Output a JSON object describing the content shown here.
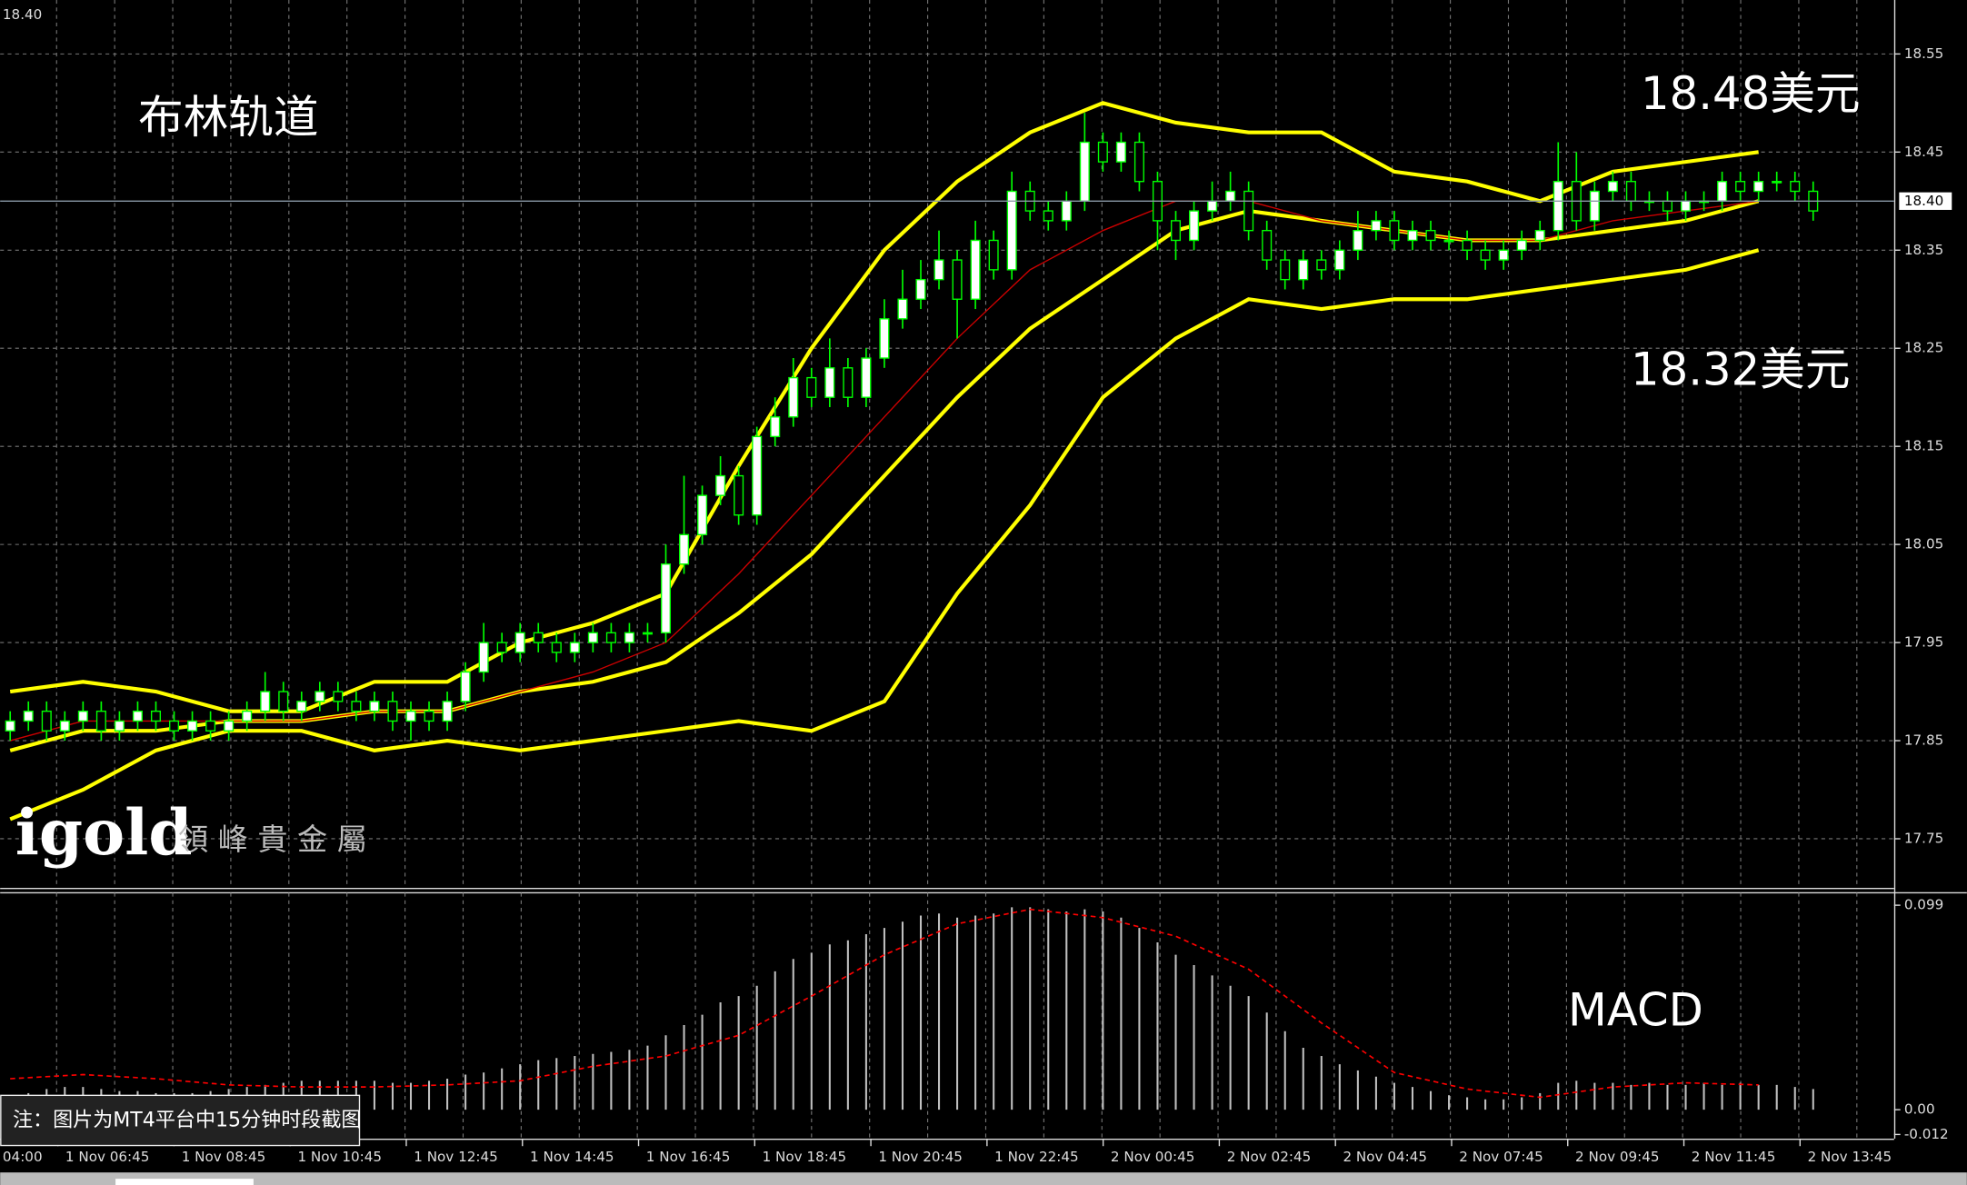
{
  "chart_data": [
    {
      "type": "candlestick",
      "corner_label": "18.40",
      "annotations": [
        "布林轨道",
        "18.48美元",
        "18.32美元"
      ],
      "up_color": "#00ff00",
      "open": [
        17.86,
        17.87,
        17.88,
        17.86,
        17.87,
        17.88,
        17.86,
        17.87,
        17.88,
        17.87,
        17.86,
        17.87,
        17.86,
        17.87,
        17.88,
        17.9,
        17.88,
        17.89,
        17.9,
        17.89,
        17.88,
        17.89,
        17.87,
        17.88,
        17.87,
        17.89,
        17.92,
        17.95,
        17.94,
        17.96,
        17.95,
        17.94,
        17.95,
        17.96,
        17.95,
        17.96,
        17.96,
        18.03,
        18.06,
        18.1,
        18.12,
        18.08,
        18.16,
        18.18,
        18.22,
        18.2,
        18.23,
        18.2,
        18.24,
        18.28,
        18.3,
        18.32,
        18.34,
        18.3,
        18.36,
        18.33,
        18.41,
        18.39,
        18.38,
        18.4,
        18.46,
        18.44,
        18.46,
        18.42,
        18.38,
        18.36,
        18.39,
        18.4,
        18.41,
        18.37,
        18.34,
        18.32,
        18.34,
        18.33,
        18.35,
        18.37,
        18.38,
        18.36,
        18.37,
        18.36,
        18.36,
        18.35,
        18.34,
        18.35,
        18.36,
        18.37,
        18.42,
        18.38,
        18.41,
        18.42,
        18.4,
        18.4,
        18.39,
        18.4,
        18.4,
        18.42,
        18.41,
        18.42,
        18.42,
        18.41
      ],
      "high": [
        17.88,
        17.89,
        17.89,
        17.88,
        17.89,
        17.89,
        17.88,
        17.89,
        17.89,
        17.88,
        17.88,
        17.88,
        17.88,
        17.89,
        17.92,
        17.91,
        17.9,
        17.91,
        17.91,
        17.9,
        17.9,
        17.9,
        17.89,
        17.89,
        17.9,
        17.93,
        17.97,
        17.96,
        17.97,
        17.97,
        17.96,
        17.96,
        17.97,
        17.97,
        17.97,
        17.97,
        18.05,
        18.12,
        18.11,
        18.14,
        18.13,
        18.17,
        18.2,
        18.24,
        18.23,
        18.26,
        18.24,
        18.25,
        18.3,
        18.33,
        18.34,
        18.37,
        18.35,
        18.38,
        18.37,
        18.43,
        18.42,
        18.4,
        18.41,
        18.49,
        18.47,
        18.47,
        18.47,
        18.43,
        18.39,
        18.4,
        18.42,
        18.43,
        18.42,
        18.38,
        18.35,
        18.35,
        18.35,
        18.36,
        18.39,
        18.39,
        18.39,
        18.38,
        18.38,
        18.37,
        18.37,
        18.36,
        18.36,
        18.37,
        18.38,
        18.46,
        18.45,
        18.42,
        18.43,
        18.43,
        18.41,
        18.41,
        18.41,
        18.41,
        18.43,
        18.43,
        18.43,
        18.43,
        18.43,
        18.42
      ],
      "low": [
        17.85,
        17.86,
        17.85,
        17.85,
        17.86,
        17.85,
        17.85,
        17.86,
        17.86,
        17.85,
        17.85,
        17.85,
        17.85,
        17.86,
        17.87,
        17.87,
        17.87,
        17.88,
        17.88,
        17.87,
        17.87,
        17.86,
        17.85,
        17.86,
        17.86,
        17.88,
        17.91,
        17.93,
        17.93,
        17.94,
        17.93,
        17.93,
        17.94,
        17.94,
        17.94,
        17.95,
        17.95,
        18.02,
        18.05,
        18.09,
        18.07,
        18.07,
        18.15,
        18.17,
        18.19,
        18.19,
        18.19,
        18.19,
        18.23,
        18.27,
        18.29,
        18.31,
        18.26,
        18.29,
        18.32,
        18.32,
        18.38,
        18.37,
        18.37,
        18.39,
        18.43,
        18.43,
        18.41,
        18.35,
        18.34,
        18.35,
        18.38,
        18.39,
        18.36,
        18.33,
        18.31,
        18.31,
        18.32,
        18.32,
        18.34,
        18.36,
        18.35,
        18.35,
        18.35,
        18.35,
        18.34,
        18.33,
        18.33,
        18.34,
        18.35,
        18.36,
        18.37,
        18.37,
        18.4,
        18.39,
        18.39,
        18.38,
        18.38,
        18.39,
        18.39,
        18.4,
        18.4,
        18.41,
        18.4,
        18.38
      ],
      "close": [
        17.87,
        17.88,
        17.86,
        17.87,
        17.88,
        17.86,
        17.87,
        17.88,
        17.87,
        17.86,
        17.87,
        17.86,
        17.87,
        17.88,
        17.9,
        17.88,
        17.89,
        17.9,
        17.89,
        17.88,
        17.89,
        17.87,
        17.88,
        17.87,
        17.89,
        17.92,
        17.95,
        17.94,
        17.96,
        17.95,
        17.94,
        17.95,
        17.96,
        17.95,
        17.96,
        17.96,
        18.03,
        18.06,
        18.1,
        18.12,
        18.08,
        18.16,
        18.18,
        18.22,
        18.2,
        18.23,
        18.2,
        18.24,
        18.28,
        18.3,
        18.32,
        18.34,
        18.3,
        18.36,
        18.33,
        18.41,
        18.39,
        18.38,
        18.4,
        18.46,
        18.44,
        18.46,
        18.42,
        18.38,
        18.36,
        18.39,
        18.4,
        18.41,
        18.37,
        18.34,
        18.32,
        18.34,
        18.33,
        18.35,
        18.37,
        18.38,
        18.36,
        18.37,
        18.36,
        18.36,
        18.35,
        18.34,
        18.35,
        18.36,
        18.37,
        18.42,
        18.38,
        18.41,
        18.42,
        18.4,
        18.4,
        18.39,
        18.4,
        18.4,
        18.42,
        18.41,
        18.42,
        18.42,
        18.41,
        18.39
      ],
      "bands": [
        {
          "color": "#ffff00",
          "values": [
            17.9,
            17.91,
            17.9,
            17.88,
            17.88,
            17.91,
            17.91,
            17.95,
            17.97,
            18.0,
            18.13,
            18.25,
            18.35,
            18.42,
            18.47,
            18.5,
            18.48,
            18.47,
            18.47,
            18.43,
            18.42,
            18.4,
            18.43,
            18.44,
            18.45
          ]
        },
        {
          "color": "#ffff00",
          "values": [
            17.84,
            17.86,
            17.86,
            17.87,
            17.87,
            17.88,
            17.88,
            17.9,
            17.91,
            17.93,
            17.98,
            18.04,
            18.12,
            18.2,
            18.27,
            18.32,
            18.37,
            18.39,
            18.38,
            18.37,
            18.36,
            18.36,
            18.37,
            18.38,
            18.4
          ]
        },
        {
          "color": "#ffff00",
          "values": [
            17.77,
            17.8,
            17.84,
            17.86,
            17.86,
            17.84,
            17.85,
            17.84,
            17.85,
            17.86,
            17.87,
            17.86,
            17.89,
            18.0,
            18.09,
            18.2,
            18.26,
            18.3,
            18.29,
            18.3,
            18.3,
            18.31,
            18.32,
            18.33,
            18.35
          ]
        },
        {
          "color": "#cc0000",
          "values": [
            17.85,
            17.87,
            17.87,
            17.87,
            17.87,
            17.88,
            17.88,
            17.9,
            17.92,
            17.95,
            18.02,
            18.1,
            18.18,
            18.26,
            18.33,
            18.37,
            18.4,
            18.4,
            18.38,
            18.37,
            18.36,
            18.36,
            18.38,
            18.39,
            18.4
          ]
        }
      ],
      "last_price": {
        "value": 18.4,
        "label": "18.40"
      },
      "ylim": [
        17.7,
        18.605
      ],
      "yticks": [
        17.75,
        17.85,
        17.95,
        18.05,
        18.15,
        18.25,
        18.35,
        18.45,
        18.55
      ],
      "grid": true,
      "x_labels": [
        "04:00",
        "1 Nov 06:45",
        "1 Nov 08:45",
        "1 Nov 10:45",
        "1 Nov 12:45",
        "1 Nov 14:45",
        "1 Nov 16:45",
        "1 Nov 18:45",
        "1 Nov 20:45",
        "1 Nov 22:45",
        "2 Nov 00:45",
        "2 Nov 02:45",
        "2 Nov 04:45",
        "2 Nov 07:45",
        "2 Nov 09:45",
        "2 Nov 11:45",
        "2 Nov 13:45"
      ]
    },
    {
      "type": "macd",
      "annotation": "MACD",
      "color": "#c0c0c0",
      "values": [
        0.006,
        0.008,
        0.01,
        0.011,
        0.011,
        0.01,
        0.009,
        0.009,
        0.008,
        0.008,
        0.008,
        0.009,
        0.01,
        0.011,
        0.012,
        0.013,
        0.014,
        0.014,
        0.014,
        0.014,
        0.014,
        0.013,
        0.013,
        0.014,
        0.015,
        0.017,
        0.018,
        0.02,
        0.022,
        0.024,
        0.025,
        0.026,
        0.027,
        0.028,
        0.029,
        0.031,
        0.036,
        0.041,
        0.046,
        0.052,
        0.055,
        0.06,
        0.067,
        0.073,
        0.076,
        0.08,
        0.082,
        0.085,
        0.088,
        0.091,
        0.094,
        0.095,
        0.093,
        0.094,
        0.095,
        0.098,
        0.098,
        0.097,
        0.096,
        0.097,
        0.096,
        0.093,
        0.088,
        0.081,
        0.075,
        0.07,
        0.065,
        0.06,
        0.055,
        0.047,
        0.038,
        0.03,
        0.026,
        0.022,
        0.019,
        0.016,
        0.013,
        0.011,
        0.009,
        0.007,
        0.006,
        0.005,
        0.005,
        0.006,
        0.008,
        0.013,
        0.014,
        0.013,
        0.013,
        0.012,
        0.013,
        0.012,
        0.012,
        0.013,
        0.012,
        0.013,
        0.012,
        0.012,
        0.011,
        0.01
      ],
      "signal": {
        "color": "#ff0000",
        "values": [
          0.015,
          0.017,
          0.015,
          0.012,
          0.011,
          0.011,
          0.012,
          0.014,
          0.021,
          0.026,
          0.036,
          0.055,
          0.075,
          0.09,
          0.097,
          0.093,
          0.084,
          0.068,
          0.042,
          0.018,
          0.01,
          0.006,
          0.011,
          0.013,
          0.012
        ]
      },
      "ylim": [
        -0.014,
        0.105
      ],
      "yticks": [
        0.099,
        {
          "value": 0,
          "label": "0.00"
        },
        -0.012
      ]
    }
  ],
  "footer": {
    "note": "注：图片为MT4平台中15分钟时段截图",
    "logo": "igold",
    "logo_sub": "領 峰 貴 金 屬"
  }
}
